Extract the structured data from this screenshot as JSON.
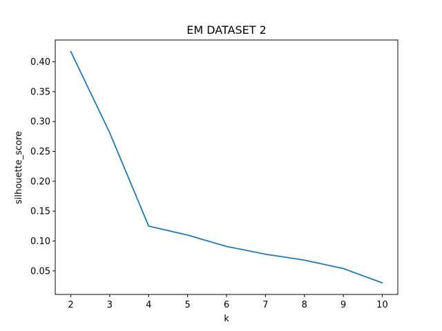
{
  "chart_data": {
    "type": "line",
    "title": "EM DATASET 2",
    "xlabel": "k",
    "ylabel": "silhouette_score",
    "x": [
      2,
      3,
      4,
      5,
      6,
      7,
      8,
      9,
      10
    ],
    "series": [
      {
        "values": [
          0.417,
          0.281,
          0.125,
          0.11,
          0.091,
          0.078,
          0.068,
          0.054,
          0.03
        ],
        "color": "#1f77b4"
      }
    ],
    "xlim": [
      1.6,
      10.4
    ],
    "ylim": [
      0.0106,
      0.4364
    ],
    "xticks": [
      2,
      3,
      4,
      5,
      6,
      7,
      8,
      9,
      10
    ],
    "yticks": [
      0.05,
      0.1,
      0.15,
      0.2,
      0.25,
      0.3,
      0.35,
      0.4
    ],
    "ytick_labels": [
      "0.05",
      "0.10",
      "0.15",
      "0.20",
      "0.25",
      "0.30",
      "0.35",
      "0.40"
    ],
    "grid": false,
    "legend": "none"
  }
}
